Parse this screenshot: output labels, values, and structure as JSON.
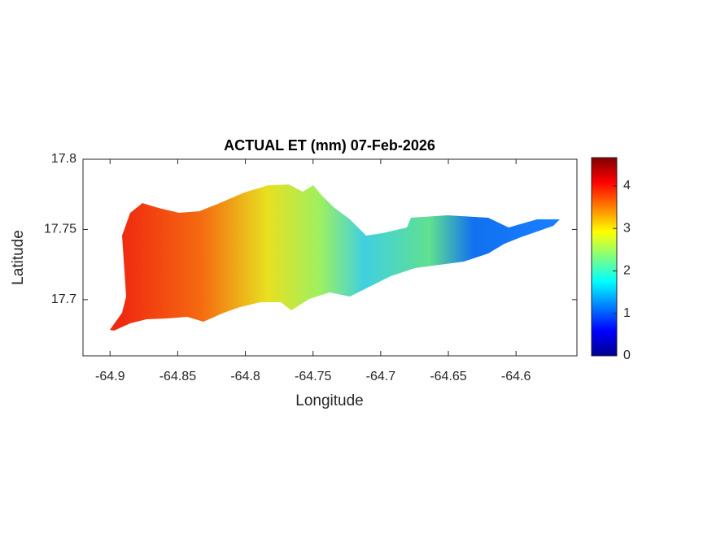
{
  "chart_data": {
    "type": "map",
    "title": "ACTUAL ET (mm) 07-Feb-2026",
    "xlabel": "Longitude",
    "ylabel": "Latitude",
    "xlim": [
      -64.92,
      -64.555
    ],
    "ylim": [
      17.66,
      17.8
    ],
    "xticks": [
      -64.9,
      -64.85,
      -64.8,
      -64.75,
      -64.7,
      -64.65,
      -64.6
    ],
    "yticks": [
      17.7,
      17.75,
      17.8
    ],
    "colormap": "jet",
    "clim": [
      0,
      4.67
    ],
    "cticks": [
      0,
      1,
      2,
      3,
      4
    ]
  }
}
